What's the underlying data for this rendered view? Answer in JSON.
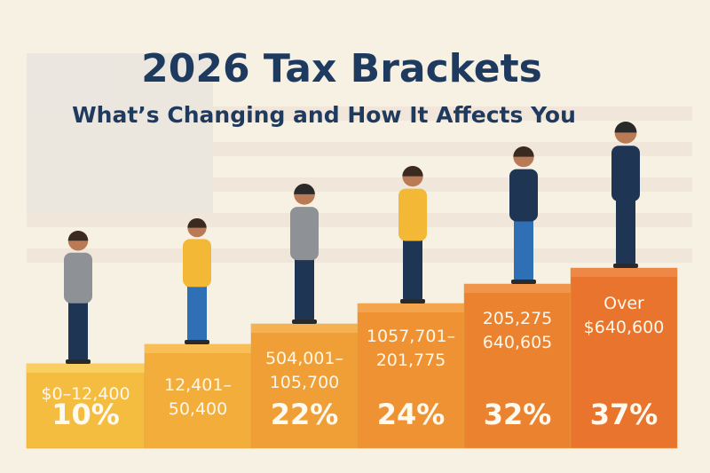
{
  "header": {
    "title": "2026 Tax Brackets",
    "subtitle": "What’s Changing and How It Affects You"
  },
  "steps": [
    {
      "range": [
        "$0–12,400"
      ],
      "rate": "10%"
    },
    {
      "range": [
        "12,401–",
        "50,400"
      ]
    },
    {
      "range": [
        "504,001–",
        "105,700"
      ],
      "rate": "22%"
    },
    {
      "range": [
        "1057,701–",
        "201,775"
      ],
      "rate": "24%"
    },
    {
      "range": [
        "205,275",
        "640,605"
      ],
      "rate": "32%"
    },
    {
      "range": [
        "Over",
        "$640,600"
      ],
      "rate": "37%"
    }
  ]
}
